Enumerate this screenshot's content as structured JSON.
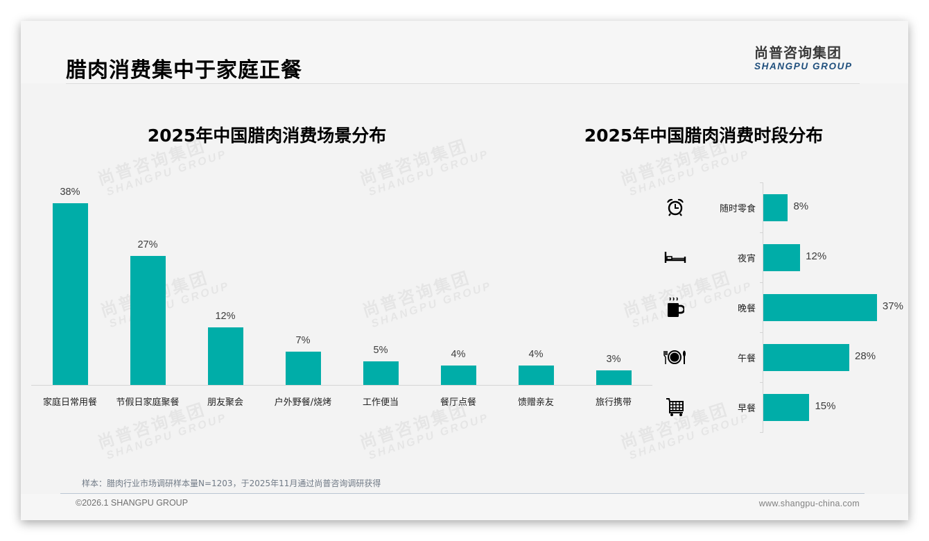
{
  "page": {
    "title": "腊肉消费集中于家庭正餐",
    "logo_cn": "尚普咨询集团",
    "logo_en": "SHANGPU GROUP",
    "watermark_cn": "尚普咨询集团",
    "watermark_en": "SHANGPU GROUP",
    "note": "样本：腊肉行业市场调研样本量N=1203，于2025年11月通过尚普咨询调研获得",
    "copyright": "©2026.1 SHANGPU GROUP",
    "website": "www.shangpu-china.com"
  },
  "colors": {
    "bar": "#00ada8",
    "logo_en": "#1e4e7c",
    "background": "#f3f3f3"
  },
  "chart_data": [
    {
      "type": "bar",
      "orientation": "vertical",
      "title": "2025年中国腊肉消费场景分布",
      "xlabel": "",
      "ylabel": "",
      "categories": [
        "家庭日常用餐",
        "节假日家庭聚餐",
        "朋友聚会",
        "户外野餐/烧烤",
        "工作便当",
        "餐厅点餐",
        "馈赠亲友",
        "旅行携带"
      ],
      "values": [
        38,
        27,
        12,
        7,
        5,
        4,
        4,
        3
      ],
      "labels": [
        "38%",
        "27%",
        "12%",
        "7%",
        "5%",
        "4%",
        "4%",
        "3%"
      ],
      "unit": "%",
      "ylim": [
        0,
        40
      ],
      "grid": false,
      "legend": "none"
    },
    {
      "type": "bar",
      "orientation": "horizontal",
      "title": "2025年中国腊肉消费时段分布",
      "xlabel": "",
      "ylabel": "",
      "categories": [
        "随时零食",
        "夜宵",
        "晚餐",
        "午餐",
        "早餐"
      ],
      "values": [
        8,
        12,
        37,
        28,
        15
      ],
      "labels": [
        "8%",
        "12%",
        "37%",
        "28%",
        "15%"
      ],
      "icons": [
        "alarm-clock-icon",
        "bed-icon",
        "hot-coffee-mug-icon",
        "plate-fork-knife-icon",
        "shopping-cart-icon"
      ],
      "unit": "%",
      "xlim": [
        0,
        40
      ],
      "grid": false,
      "legend": "none"
    }
  ]
}
